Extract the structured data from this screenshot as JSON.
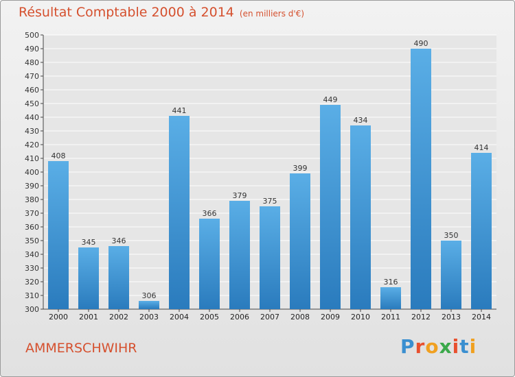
{
  "chart_data": {
    "type": "bar",
    "title": "Résultat Comptable 2000 à 2014",
    "subtitle": "(en milliers d'€)",
    "categories": [
      "2000",
      "2001",
      "2002",
      "2003",
      "2004",
      "2005",
      "2006",
      "2007",
      "2008",
      "2009",
      "2010",
      "2011",
      "2012",
      "2013",
      "2014"
    ],
    "values": [
      408,
      345,
      346,
      306,
      441,
      366,
      379,
      375,
      399,
      449,
      434,
      316,
      490,
      350,
      414
    ],
    "ylim": [
      300,
      500
    ],
    "ytick_step": 10,
    "grid": true,
    "xlabel": "",
    "ylabel": "",
    "bar_color_top": "#5aaee6",
    "bar_color_bottom": "#2a7bbd"
  },
  "location": "AMMERSCHWIHR",
  "logo": {
    "text": "Proxiti",
    "letters": [
      {
        "char": "P",
        "color": "#3a8fd0"
      },
      {
        "char": "r",
        "color": "#e8502e"
      },
      {
        "char": "o",
        "color": "#f0a020"
      },
      {
        "char": "x",
        "color": "#3aa84a"
      },
      {
        "char": "i",
        "color": "#e8502e"
      },
      {
        "char": "t",
        "color": "#3a8fd0"
      },
      {
        "char": "i",
        "color": "#f0a020"
      }
    ]
  }
}
